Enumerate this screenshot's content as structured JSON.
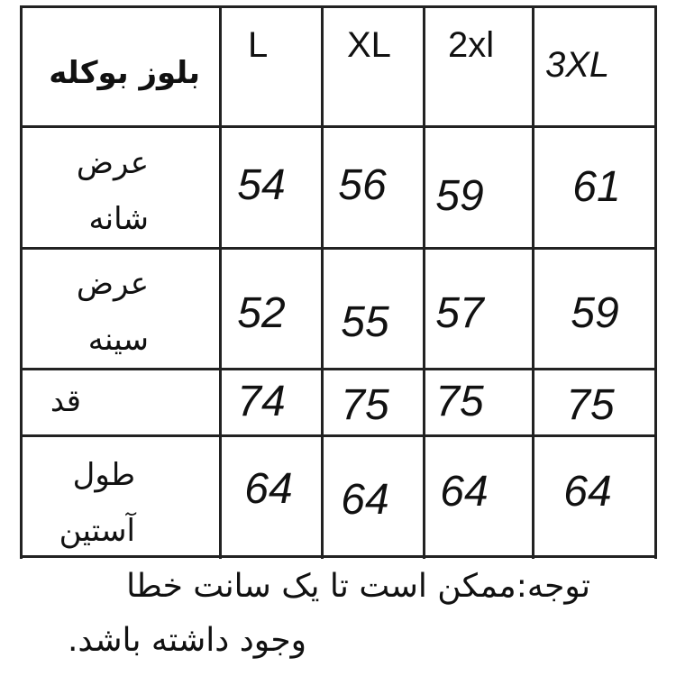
{
  "table": {
    "title": "بلوز بوکله",
    "sizes": [
      "L",
      "XL",
      "2xl",
      "3XL"
    ],
    "rows": [
      {
        "label_line1": "عرض",
        "label_line2": "شانه",
        "values": [
          "54",
          "56",
          "59",
          "61"
        ]
      },
      {
        "label_line1": "عرض",
        "label_line2": "سینه",
        "values": [
          "52",
          "55",
          "57",
          "59"
        ]
      },
      {
        "label_line1": "قد",
        "label_line2": "",
        "values": [
          "74",
          "75",
          "75",
          "75"
        ]
      },
      {
        "label_line1": "طول",
        "label_line2": "آستین",
        "values": [
          "64",
          "64",
          "64",
          "64"
        ]
      }
    ]
  },
  "note": {
    "line1": "توجه:ممکن است تا یک سانت خطا",
    "line2": "وجود داشته باشد."
  }
}
